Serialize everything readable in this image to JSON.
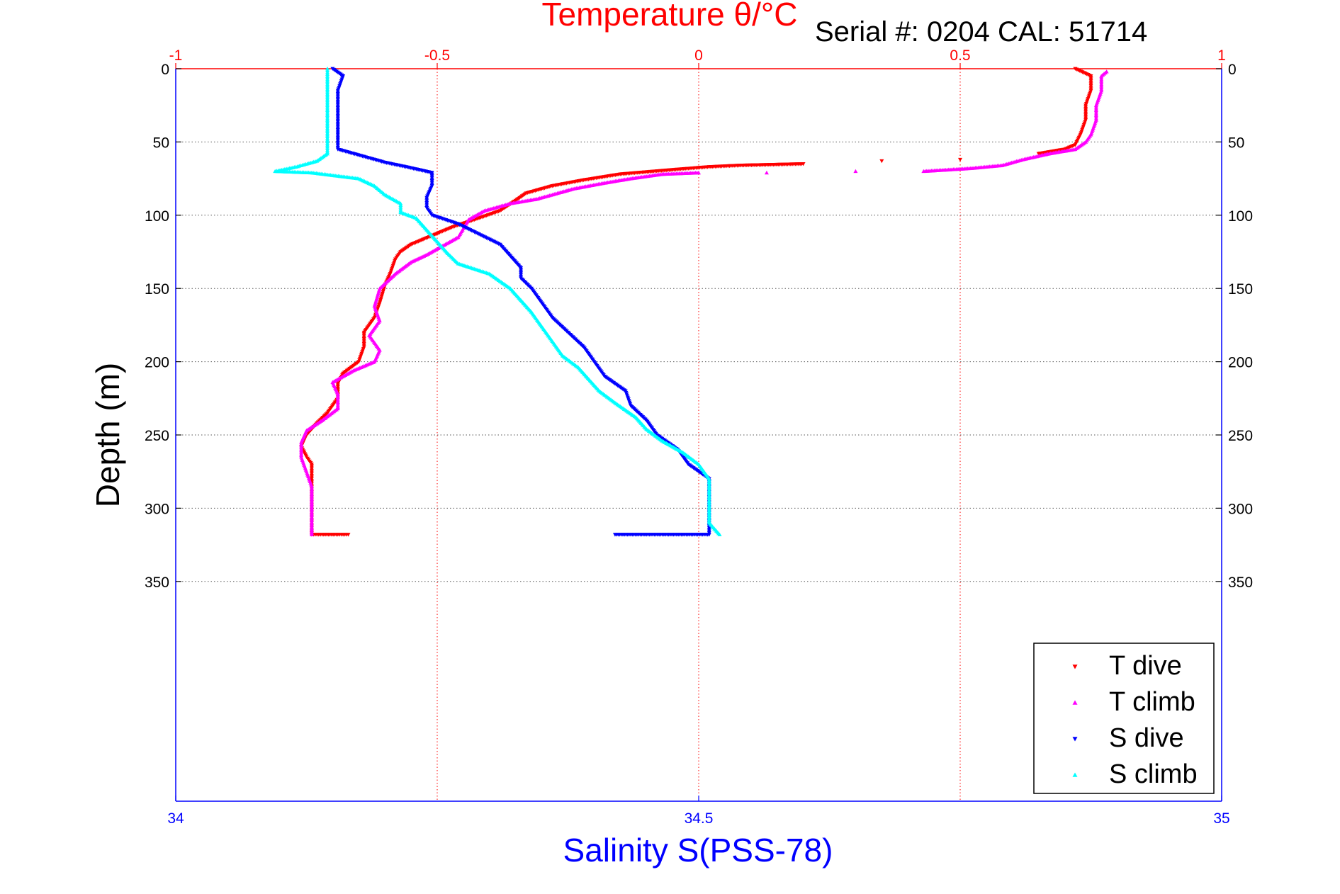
{
  "chart_data": {
    "type": "scatter",
    "title": "Temperature θ/°C",
    "serial_label": "Serial #: 0204  CAL: 51714",
    "xlabel_top": "Temperature θ/°C",
    "xlabel_bottom": "Salinity S(PSS-78)",
    "ylabel": "Depth (m)",
    "temperature_axis": {
      "range": [
        -1,
        1
      ],
      "ticks": [
        -1,
        -0.5,
        0,
        0.5,
        1
      ],
      "tick_labels": [
        "-1",
        "-0.5",
        "0",
        "0.5",
        "1"
      ],
      "color": "#ff0000"
    },
    "salinity_axis": {
      "range": [
        34,
        35
      ],
      "ticks": [
        34,
        34.5,
        35
      ],
      "tick_labels": [
        "34",
        "34.5",
        "35"
      ],
      "color": "#0000ff"
    },
    "depth_axis": {
      "range": [
        0,
        500
      ],
      "reversed": true,
      "ticks": [
        0,
        50,
        100,
        150,
        200,
        250,
        300,
        350
      ],
      "tick_labels": [
        "0",
        "50",
        "100",
        "150",
        "200",
        "250",
        "300",
        "350"
      ]
    },
    "grid": true,
    "legend": {
      "placement": "bottom-right",
      "entries": [
        {
          "label": "T dive",
          "color": "#ff0000",
          "marker": "down-triangle"
        },
        {
          "label": "T climb",
          "color": "#ff00ff",
          "marker": "up-triangle"
        },
        {
          "label": "S dive",
          "color": "#0000ff",
          "marker": "down-triangle"
        },
        {
          "label": "S climb",
          "color": "#00ffff",
          "marker": "up-triangle"
        }
      ]
    },
    "series": [
      {
        "name": "T dive",
        "axis": "temperature",
        "color": "#ff0000",
        "marker": "down-triangle",
        "points": [
          [
            0.72,
            0
          ],
          [
            0.75,
            5
          ],
          [
            0.75,
            15
          ],
          [
            0.74,
            25
          ],
          [
            0.74,
            35
          ],
          [
            0.73,
            45
          ],
          [
            0.72,
            52
          ],
          [
            0.7,
            55
          ],
          [
            0.65,
            58
          ],
          [
            0.5,
            62
          ],
          [
            0.35,
            63
          ],
          [
            0.2,
            65
          ],
          [
            0.08,
            66
          ],
          [
            0.02,
            67
          ],
          [
            -0.05,
            69
          ],
          [
            -0.15,
            72
          ],
          [
            -0.22,
            76
          ],
          [
            -0.28,
            80
          ],
          [
            -0.33,
            85
          ],
          [
            -0.35,
            90
          ],
          [
            -0.38,
            97
          ],
          [
            -0.42,
            102
          ],
          [
            -0.47,
            108
          ],
          [
            -0.51,
            114
          ],
          [
            -0.55,
            120
          ],
          [
            -0.57,
            125
          ],
          [
            -0.58,
            130
          ],
          [
            -0.59,
            140
          ],
          [
            -0.6,
            148
          ],
          [
            -0.61,
            160
          ],
          [
            -0.62,
            170
          ],
          [
            -0.64,
            180
          ],
          [
            -0.64,
            190
          ],
          [
            -0.65,
            200
          ],
          [
            -0.68,
            208
          ],
          [
            -0.69,
            215
          ],
          [
            -0.69,
            225
          ],
          [
            -0.71,
            235
          ],
          [
            -0.73,
            242
          ],
          [
            -0.75,
            250
          ],
          [
            -0.76,
            258
          ],
          [
            -0.75,
            265
          ],
          [
            -0.74,
            270
          ],
          [
            -0.74,
            280
          ],
          [
            -0.74,
            290
          ],
          [
            -0.74,
            300
          ],
          [
            -0.74,
            310
          ],
          [
            -0.74,
            318
          ],
          [
            -0.72,
            318
          ],
          [
            -0.69,
            318
          ],
          [
            -0.67,
            318
          ]
        ]
      },
      {
        "name": "T climb",
        "axis": "temperature",
        "color": "#ff00ff",
        "marker": "up-triangle",
        "points": [
          [
            -0.74,
            318
          ],
          [
            -0.74,
            305
          ],
          [
            -0.74,
            295
          ],
          [
            -0.74,
            285
          ],
          [
            -0.75,
            275
          ],
          [
            -0.76,
            265
          ],
          [
            -0.76,
            255
          ],
          [
            -0.75,
            247
          ],
          [
            -0.72,
            240
          ],
          [
            -0.69,
            232
          ],
          [
            -0.69,
            222
          ],
          [
            -0.7,
            214
          ],
          [
            -0.66,
            206
          ],
          [
            -0.62,
            200
          ],
          [
            -0.61,
            192
          ],
          [
            -0.63,
            182
          ],
          [
            -0.61,
            172
          ],
          [
            -0.62,
            162
          ],
          [
            -0.61,
            150
          ],
          [
            -0.58,
            140
          ],
          [
            -0.55,
            132
          ],
          [
            -0.52,
            127
          ],
          [
            -0.49,
            121
          ],
          [
            -0.46,
            115
          ],
          [
            -0.45,
            109
          ],
          [
            -0.44,
            103
          ],
          [
            -0.41,
            97
          ],
          [
            -0.36,
            92
          ],
          [
            -0.31,
            89
          ],
          [
            -0.27,
            85
          ],
          [
            -0.24,
            82
          ],
          [
            -0.18,
            78
          ],
          [
            -0.13,
            75
          ],
          [
            -0.07,
            72
          ],
          [
            0.0,
            71
          ],
          [
            0.13,
            71
          ],
          [
            0.3,
            70
          ],
          [
            0.43,
            70
          ],
          [
            0.52,
            68
          ],
          [
            0.58,
            66
          ],
          [
            0.62,
            62
          ],
          [
            0.67,
            58
          ],
          [
            0.72,
            55
          ],
          [
            0.74,
            50
          ],
          [
            0.75,
            45
          ],
          [
            0.76,
            35
          ],
          [
            0.76,
            25
          ],
          [
            0.77,
            15
          ],
          [
            0.77,
            5
          ],
          [
            0.78,
            2
          ]
        ]
      },
      {
        "name": "S dive",
        "axis": "salinity",
        "color": "#0000ff",
        "marker": "down-triangle",
        "points": [
          [
            34.15,
            0
          ],
          [
            34.16,
            5
          ],
          [
            34.155,
            15
          ],
          [
            34.155,
            30
          ],
          [
            34.155,
            45
          ],
          [
            34.155,
            55
          ],
          [
            34.18,
            60
          ],
          [
            34.2,
            64
          ],
          [
            34.22,
            67
          ],
          [
            34.245,
            71
          ],
          [
            34.245,
            80
          ],
          [
            34.24,
            88
          ],
          [
            34.24,
            95
          ],
          [
            34.245,
            100
          ],
          [
            34.27,
            106
          ],
          [
            34.29,
            113
          ],
          [
            34.31,
            120
          ],
          [
            34.32,
            128
          ],
          [
            34.33,
            136
          ],
          [
            34.33,
            143
          ],
          [
            34.34,
            150
          ],
          [
            34.35,
            160
          ],
          [
            34.36,
            170
          ],
          [
            34.375,
            180
          ],
          [
            34.39,
            190
          ],
          [
            34.4,
            200
          ],
          [
            34.41,
            210
          ],
          [
            34.43,
            220
          ],
          [
            34.435,
            230
          ],
          [
            34.45,
            240
          ],
          [
            34.46,
            250
          ],
          [
            34.48,
            260
          ],
          [
            34.49,
            270
          ],
          [
            34.5,
            275
          ],
          [
            34.51,
            280
          ],
          [
            34.51,
            290
          ],
          [
            34.51,
            300
          ],
          [
            34.51,
            310
          ],
          [
            34.51,
            318
          ],
          [
            34.485,
            318
          ],
          [
            34.45,
            318
          ],
          [
            34.42,
            318
          ]
        ]
      },
      {
        "name": "S climb",
        "axis": "salinity",
        "color": "#00ffff",
        "marker": "up-triangle",
        "points": [
          [
            34.52,
            318
          ],
          [
            34.51,
            310
          ],
          [
            34.51,
            300
          ],
          [
            34.51,
            290
          ],
          [
            34.51,
            280
          ],
          [
            34.5,
            270
          ],
          [
            34.485,
            262
          ],
          [
            34.465,
            254
          ],
          [
            34.45,
            246
          ],
          [
            34.44,
            238
          ],
          [
            34.42,
            228
          ],
          [
            34.405,
            220
          ],
          [
            34.395,
            212
          ],
          [
            34.385,
            204
          ],
          [
            34.37,
            196
          ],
          [
            34.36,
            186
          ],
          [
            34.35,
            176
          ],
          [
            34.34,
            166
          ],
          [
            34.33,
            158
          ],
          [
            34.32,
            150
          ],
          [
            34.3,
            140
          ],
          [
            34.27,
            133
          ],
          [
            34.26,
            126
          ],
          [
            34.25,
            118
          ],
          [
            34.24,
            110
          ],
          [
            34.23,
            102
          ],
          [
            34.215,
            98
          ],
          [
            34.215,
            92
          ],
          [
            34.2,
            86
          ],
          [
            34.19,
            80
          ],
          [
            34.175,
            75
          ],
          [
            34.13,
            71
          ],
          [
            34.095,
            70
          ],
          [
            34.115,
            67
          ],
          [
            34.135,
            63
          ],
          [
            34.145,
            58
          ],
          [
            34.145,
            52
          ],
          [
            34.145,
            45
          ],
          [
            34.145,
            35
          ],
          [
            34.145,
            25
          ],
          [
            34.145,
            15
          ],
          [
            34.145,
            5
          ],
          [
            34.145,
            0
          ]
        ]
      }
    ]
  }
}
